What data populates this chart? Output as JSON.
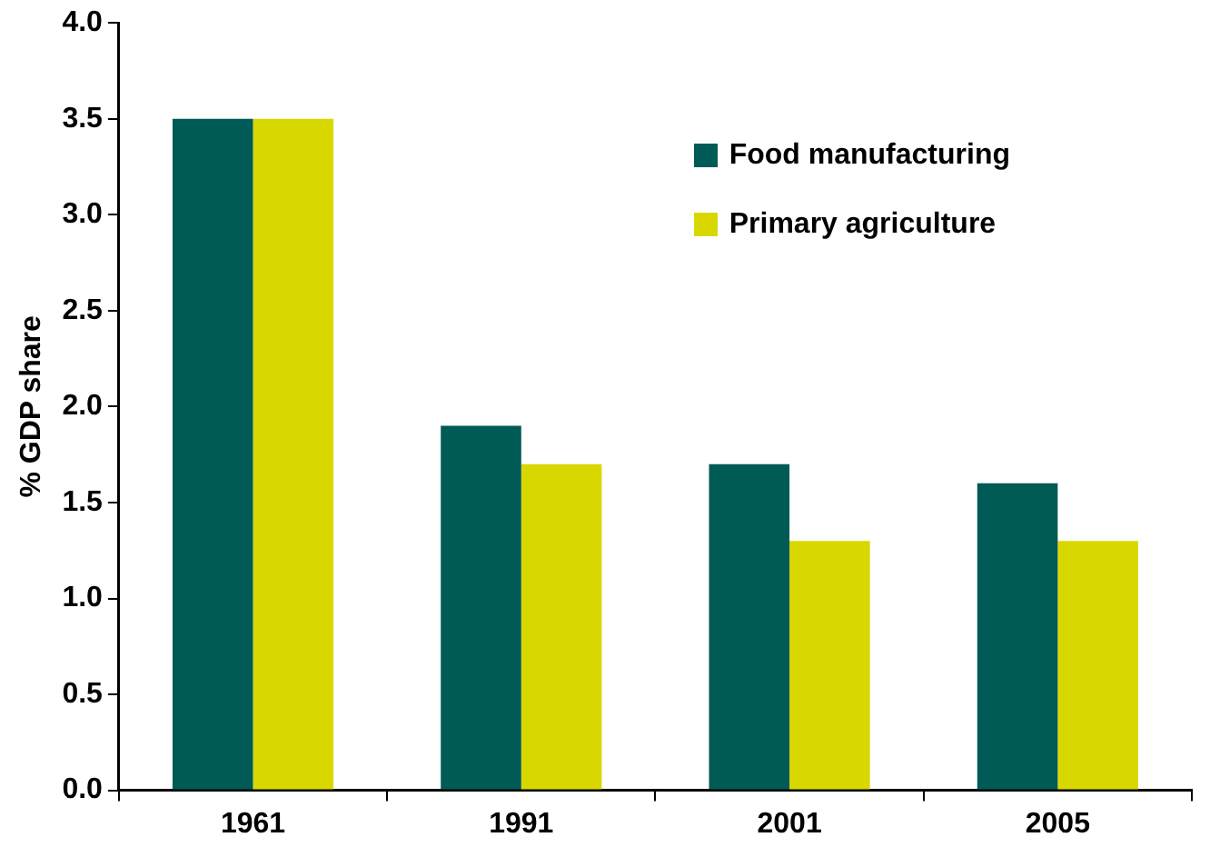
{
  "chart_data": {
    "type": "bar",
    "ylabel": "% GDP share",
    "categories": [
      "1961",
      "1991",
      "2001",
      "2005"
    ],
    "series": [
      {
        "name": "Food manufacturing",
        "color": "#005a55",
        "values": [
          3.5,
          1.9,
          1.7,
          1.6
        ]
      },
      {
        "name": "Primary agriculture",
        "color": "#d8d800",
        "values": [
          3.5,
          1.7,
          1.3,
          1.3
        ]
      }
    ],
    "ylim": [
      0,
      4
    ],
    "yticks": [
      {
        "value": 0,
        "label": "0.0"
      },
      {
        "value": 0.5,
        "label": "0.5"
      },
      {
        "value": 1,
        "label": "1.0"
      },
      {
        "value": 1.5,
        "label": "1.5"
      },
      {
        "value": 2,
        "label": "2.0"
      },
      {
        "value": 2.5,
        "label": "2.5"
      },
      {
        "value": 3,
        "label": "3.0"
      },
      {
        "value": 3.5,
        "label": "3.5"
      },
      {
        "value": 4,
        "label": "4.0"
      }
    ],
    "grid": false,
    "legend": "top right"
  }
}
